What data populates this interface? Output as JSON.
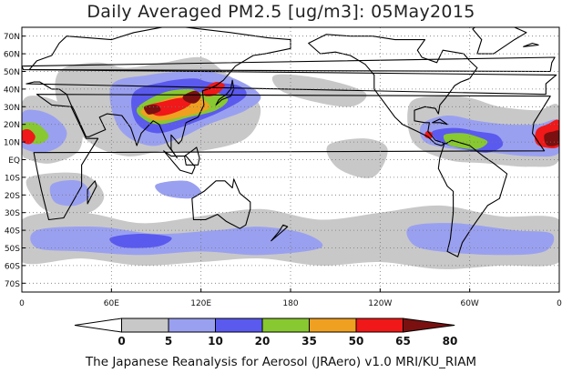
{
  "title": "Daily Averaged PM2.5 [ug/m3]: 05May2015",
  "footer": "The Japanese Reanalysis for Aerosol (JRAero) v1.0 MRI/KU_RIAM",
  "axes": {
    "lat_labels": [
      "70N",
      "60N",
      "50N",
      "40N",
      "30N",
      "20N",
      "10N",
      "EQ",
      "10S",
      "20S",
      "30S",
      "40S",
      "50S",
      "60S",
      "70S"
    ],
    "lat_values": [
      70,
      60,
      50,
      40,
      30,
      20,
      10,
      0,
      -10,
      -20,
      -30,
      -40,
      -50,
      -60,
      -70
    ],
    "lon_labels": [
      "0",
      "60E",
      "120E",
      "180",
      "120W",
      "60W",
      "0"
    ],
    "lon_values": [
      0,
      60,
      120,
      180,
      240,
      300,
      360
    ],
    "lat_range": [
      -75,
      75
    ],
    "lon_range": [
      0,
      360
    ],
    "grid": true
  },
  "colorbar": {
    "ticks": [
      "0",
      "5",
      "10",
      "20",
      "35",
      "50",
      "65",
      "80"
    ],
    "colors": [
      "#ffffff",
      "#c8c8c8",
      "#9aa0f0",
      "#5a5aef",
      "#88c830",
      "#f0a020",
      "#f01818",
      "#7a1010"
    ]
  },
  "map_data": {
    "units": "ug/m3",
    "regions": [
      {
        "level": 1,
        "lon": [
          25,
          50,
          70,
          95,
          120,
          135,
          150,
          160,
          150,
          120,
          95,
          70,
          45,
          25
        ],
        "lat": [
          50,
          55,
          52,
          55,
          58,
          50,
          40,
          28,
          12,
          5,
          5,
          2,
          10,
          30
        ]
      },
      {
        "level": 2,
        "lon": [
          60,
          85,
          110,
          125,
          145,
          160,
          150,
          125,
          105,
          85,
          65
        ],
        "lat": [
          42,
          48,
          50,
          50,
          45,
          36,
          28,
          20,
          12,
          8,
          18
        ]
      },
      {
        "level": 3,
        "lon": [
          75,
          95,
          115,
          125,
          145,
          150,
          135,
          112,
          90,
          76
        ],
        "lat": [
          38,
          44,
          46,
          44,
          42,
          36,
          28,
          20,
          15,
          22
        ]
      },
      {
        "level": 4,
        "lon": [
          78,
          95,
          112,
          120,
          130,
          138,
          130,
          112,
          92,
          80
        ],
        "lat": [
          30,
          38,
          40,
          38,
          38,
          34,
          28,
          24,
          20,
          24
        ]
      },
      {
        "level": 5,
        "lon": [
          80,
          96,
          112,
          120,
          126,
          120,
          106,
          92,
          84
        ],
        "lat": [
          28,
          34,
          37,
          35,
          30,
          27,
          24,
          22,
          24
        ]
      },
      {
        "level": 6,
        "lon": [
          83,
          95,
          106,
          114,
          111,
          100,
          90
        ],
        "lat": [
          30,
          33,
          35,
          34,
          30,
          26,
          25
        ]
      },
      {
        "level": 7,
        "lon": [
          108,
          116,
          120,
          116,
          110
        ],
        "lat": [
          36,
          39,
          36,
          32,
          33
        ]
      },
      {
        "level": 6,
        "lon": [
          122,
          130,
          136,
          130,
          123
        ],
        "lat": [
          40,
          44,
          42,
          37,
          36
        ]
      },
      {
        "level": 7,
        "lon": [
          82,
          90,
          93,
          88,
          84
        ],
        "lat": [
          30,
          31,
          28,
          26,
          26
        ]
      },
      {
        "level": 1,
        "lon": [
          0,
          12,
          30,
          40,
          38,
          20,
          5,
          0
        ],
        "lat": [
          32,
          36,
          30,
          20,
          5,
          -2,
          0,
          5
        ]
      },
      {
        "level": 2,
        "lon": [
          0,
          10,
          22,
          30,
          26,
          14,
          2,
          0
        ],
        "lat": [
          26,
          28,
          24,
          16,
          8,
          4,
          6,
          10
        ]
      },
      {
        "level": 4,
        "lon": [
          0,
          8,
          14,
          18,
          12,
          4,
          0
        ],
        "lat": [
          20,
          21,
          18,
          13,
          9,
          10,
          12
        ]
      },
      {
        "level": 6,
        "lon": [
          0,
          5,
          9,
          6,
          1
        ],
        "lat": [
          16,
          17,
          13,
          9,
          10
        ]
      },
      {
        "level": 1,
        "lon": [
          260,
          280,
          300,
          320,
          345,
          360,
          360,
          340,
          310,
          285,
          262
        ],
        "lat": [
          32,
          36,
          35,
          30,
          28,
          30,
          0,
          -4,
          -2,
          0,
          10
        ]
      },
      {
        "level": 2,
        "lon": [
          268,
          285,
          305,
          325,
          345,
          360,
          360,
          340,
          315,
          290,
          270
        ],
        "lat": [
          20,
          25,
          22,
          20,
          20,
          22,
          4,
          2,
          4,
          6,
          10
        ]
      },
      {
        "level": 3,
        "lon": [
          275,
          290,
          305,
          318,
          322,
          312,
          296,
          280
        ],
        "lat": [
          16,
          18,
          16,
          14,
          8,
          4,
          6,
          10
        ]
      },
      {
        "level": 4,
        "lon": [
          283,
          295,
          305,
          312,
          305,
          292,
          285
        ],
        "lat": [
          14,
          15,
          13,
          10,
          6,
          7,
          9
        ]
      },
      {
        "level": 6,
        "lon": [
          345,
          352,
          360,
          360,
          350,
          344
        ],
        "lat": [
          17,
          20,
          22,
          8,
          7,
          10
        ]
      },
      {
        "level": 7,
        "lon": [
          350,
          356,
          360,
          360,
          352
        ],
        "lat": [
          14,
          16,
          16,
          9,
          8
        ]
      },
      {
        "level": 6,
        "lon": [
          271,
          275,
          274,
          270
        ],
        "lat": [
          16,
          15,
          12,
          13
        ]
      },
      {
        "level": 1,
        "lon": [
          0,
          40,
          80,
          120,
          160,
          200,
          240,
          280,
          320,
          360,
          360,
          320,
          280,
          240,
          200,
          160,
          120,
          80,
          40,
          0
        ],
        "lat": [
          -34,
          -30,
          -36,
          -32,
          -28,
          -34,
          -30,
          -26,
          -32,
          -34,
          -58,
          -60,
          -62,
          -58,
          -60,
          -56,
          -58,
          -60,
          -56,
          -58
        ]
      },
      {
        "level": 2,
        "lon": [
          10,
          50,
          90,
          130,
          160,
          190,
          200,
          160,
          120,
          80,
          40,
          10
        ],
        "lat": [
          -40,
          -38,
          -42,
          -40,
          -38,
          -42,
          -50,
          -54,
          -52,
          -54,
          -52,
          -50
        ]
      },
      {
        "level": 2,
        "lon": [
          260,
          290,
          330,
          355,
          350,
          320,
          280,
          262
        ],
        "lat": [
          -38,
          -36,
          -40,
          -42,
          -52,
          -54,
          -52,
          -48
        ]
      },
      {
        "level": 3,
        "lon": [
          60,
          80,
          100,
          92,
          72,
          62
        ],
        "lat": [
          -44,
          -42,
          -44,
          -49,
          -50,
          -48
        ]
      },
      {
        "level": 1,
        "lon": [
          170,
          200,
          230,
          220,
          190,
          172
        ],
        "lat": [
          48,
          46,
          38,
          30,
          34,
          40
        ]
      },
      {
        "level": 1,
        "lon": [
          205,
          230,
          245,
          235,
          212
        ],
        "lat": [
          8,
          12,
          6,
          -10,
          -5
        ]
      },
      {
        "level": 2,
        "lon": [
          90,
          110,
          120,
          112,
          95
        ],
        "lat": [
          -14,
          -12,
          -18,
          -22,
          -20
        ]
      },
      {
        "level": 1,
        "lon": [
          5,
          40,
          55,
          45,
          20,
          8
        ],
        "lat": [
          -10,
          -8,
          -20,
          -30,
          -30,
          -22
        ]
      },
      {
        "level": 2,
        "lon": [
          20,
          38,
          46,
          36,
          22
        ],
        "lat": [
          -14,
          -12,
          -20,
          -26,
          -24
        ]
      }
    ]
  }
}
